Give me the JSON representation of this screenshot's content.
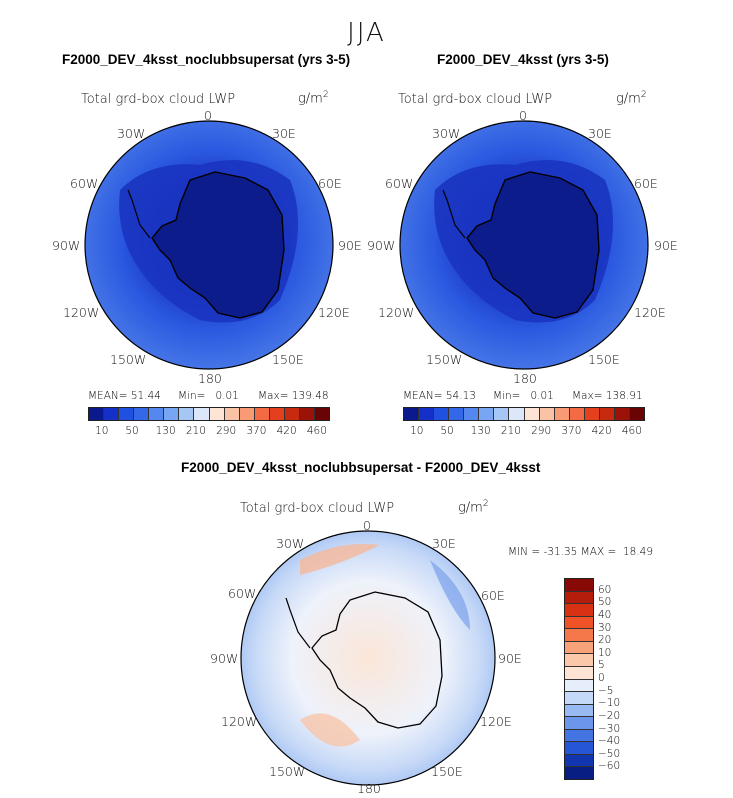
{
  "season": "JJA",
  "variable_title": "Total grd-box cloud LWP",
  "units_base": "g/m",
  "units_exp": "2",
  "lon_labels": [
    "0",
    "30E",
    "60E",
    "90E",
    "120E",
    "150E",
    "180",
    "150W",
    "120W",
    "90W",
    "60W",
    "30W"
  ],
  "panels": [
    {
      "title": "F2000_DEV_4ksst_noclubbsupersat (yrs 3-5)",
      "mean_label": "MEAN=",
      "mean": "51.44",
      "min_label": "Min=",
      "min": "0.01",
      "max_label": "Max=",
      "max": "139.48"
    },
    {
      "title": "F2000_DEV_4ksst (yrs 3-5)",
      "mean_label": "MEAN=",
      "mean": "54.13",
      "min_label": "Min=",
      "min": "0.01",
      "max_label": "Max=",
      "max": "138.91"
    }
  ],
  "diff_panel": {
    "title": "F2000_DEV_4ksst_noclubbsupersat - F2000_DEV_4ksst",
    "min_label": "MIN =",
    "min": "-31.35",
    "max_label": "MAX =",
    "max": "18.49"
  },
  "colorbar_abs": {
    "ticks": [
      "10",
      "50",
      "130",
      "210",
      "290",
      "370",
      "420",
      "460"
    ],
    "colors": [
      "#0a1a8c",
      "#1430c8",
      "#2050e0",
      "#3468e8",
      "#5488ee",
      "#78a6f2",
      "#a6c6f6",
      "#dce8fa",
      "#fde4d4",
      "#fbc3a6",
      "#f89a74",
      "#f36a44",
      "#e4401e",
      "#c82a10",
      "#9a1208",
      "#6a0404"
    ]
  },
  "colorbar_diff": {
    "ticks": [
      "60",
      "50",
      "40",
      "30",
      "20",
      "10",
      "5",
      "0",
      "−5",
      "−10",
      "−20",
      "−30",
      "−40",
      "−50",
      "−60"
    ],
    "colors": [
      "#880a06",
      "#b41c0c",
      "#d83214",
      "#ee5226",
      "#f4784a",
      "#f8a27a",
      "#fbc8aa",
      "#fde4d4",
      "#e6eefc",
      "#c4d8f8",
      "#98baf2",
      "#6c96ea",
      "#4474e2",
      "#2656d6",
      "#1236b0",
      "#081e82"
    ]
  }
}
